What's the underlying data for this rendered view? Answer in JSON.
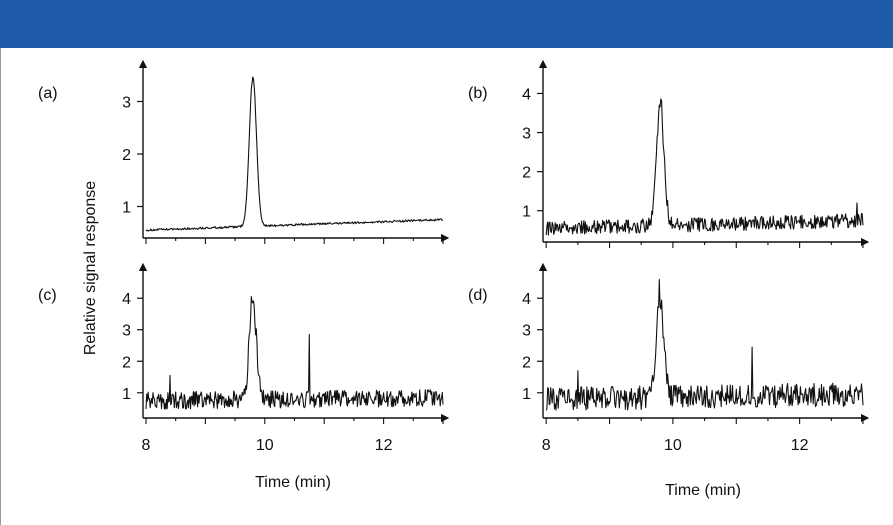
{
  "colors": {
    "banner": "#1e5ba8",
    "frame_border": "#9a9a9a",
    "line": "#111111"
  },
  "ylabel": "Relative signal response",
  "chart_data": [
    {
      "type": "line",
      "panel_label": "(a)",
      "xlabel": "",
      "xlim": [
        7.95,
        13.0
      ],
      "ylim": [
        0.4,
        3.6
      ],
      "xticks": [
        8,
        10,
        12
      ],
      "yticks": [
        1,
        2,
        3
      ],
      "show_xtick_labels": false,
      "grid": false,
      "baseline": {
        "start": 0.55,
        "end": 0.75,
        "noise": 0.02
      },
      "peaks": [
        {
          "x": 9.8,
          "height": 2.85,
          "width": 0.06
        }
      ],
      "spikes": []
    },
    {
      "type": "line",
      "panel_label": "(b)",
      "xlabel": "",
      "xlim": [
        7.95,
        13.0
      ],
      "ylim": [
        0.2,
        4.6
      ],
      "xticks": [
        8,
        10,
        12
      ],
      "yticks": [
        1,
        2,
        3,
        4
      ],
      "show_xtick_labels": false,
      "grid": false,
      "baseline": {
        "start": 0.55,
        "end": 0.75,
        "noise": 0.18
      },
      "peaks": [
        {
          "x": 9.8,
          "height": 3.1,
          "width": 0.06
        }
      ],
      "spikes": [
        {
          "x": 12.9,
          "y": 1.2
        }
      ]
    },
    {
      "type": "line",
      "panel_label": "(c)",
      "xlabel": "Time (min)",
      "xlim": [
        7.95,
        13.0
      ],
      "ylim": [
        0.2,
        4.8
      ],
      "xticks": [
        8,
        10,
        12
      ],
      "yticks": [
        1,
        2,
        3,
        4
      ],
      "show_xtick_labels": true,
      "grid": false,
      "baseline": {
        "start": 0.75,
        "end": 0.85,
        "noise": 0.28
      },
      "peaks": [
        {
          "x": 9.8,
          "height": 3.2,
          "width": 0.06
        }
      ],
      "spikes": [
        {
          "x": 10.75,
          "y": 2.85
        },
        {
          "x": 8.4,
          "y": 1.55
        }
      ]
    },
    {
      "type": "line",
      "panel_label": "(d)",
      "xlabel": "Time (min)",
      "xlim": [
        7.95,
        13.0
      ],
      "ylim": [
        0.2,
        4.8
      ],
      "xticks": [
        8,
        10,
        12
      ],
      "yticks": [
        1,
        2,
        3,
        4
      ],
      "show_xtick_labels": true,
      "grid": false,
      "baseline": {
        "start": 0.8,
        "end": 0.95,
        "noise": 0.38
      },
      "peaks": [
        {
          "x": 9.8,
          "height": 3.1,
          "width": 0.06
        }
      ],
      "spikes": [
        {
          "x": 11.25,
          "y": 2.45
        },
        {
          "x": 8.5,
          "y": 1.7
        }
      ]
    }
  ]
}
